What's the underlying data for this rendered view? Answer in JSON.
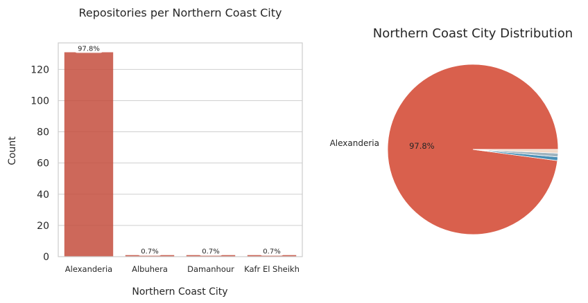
{
  "chart_data": [
    {
      "type": "bar",
      "title": "Repositories per Northern Coast City",
      "xlabel": "Northern Coast City",
      "ylabel": "Count",
      "categories": [
        "Alexanderia",
        "Albuhera",
        "Damanhour",
        "Kafr El Sheikh"
      ],
      "values": [
        131,
        1,
        1,
        1
      ],
      "data_labels": [
        "97.8%",
        "0.7%",
        "0.7%",
        "0.7%"
      ],
      "yticks": [
        "0",
        "20",
        "40",
        "60",
        "80",
        "100",
        "120"
      ],
      "ylim": [
        0,
        137
      ],
      "grid": true,
      "bar_color": "#c44e3d"
    },
    {
      "type": "pie",
      "title": "Northern Coast City Distribution",
      "labels": [
        "Alexanderia",
        "",
        "",
        ""
      ],
      "values": [
        97.8,
        0.7,
        0.7,
        0.7
      ],
      "pct_labels": [
        "97.8%",
        "",
        "",
        ""
      ],
      "colors": [
        "#d9604d",
        "#4a8fb5",
        "#9fb4bf",
        "#f1d8c6"
      ]
    }
  ]
}
